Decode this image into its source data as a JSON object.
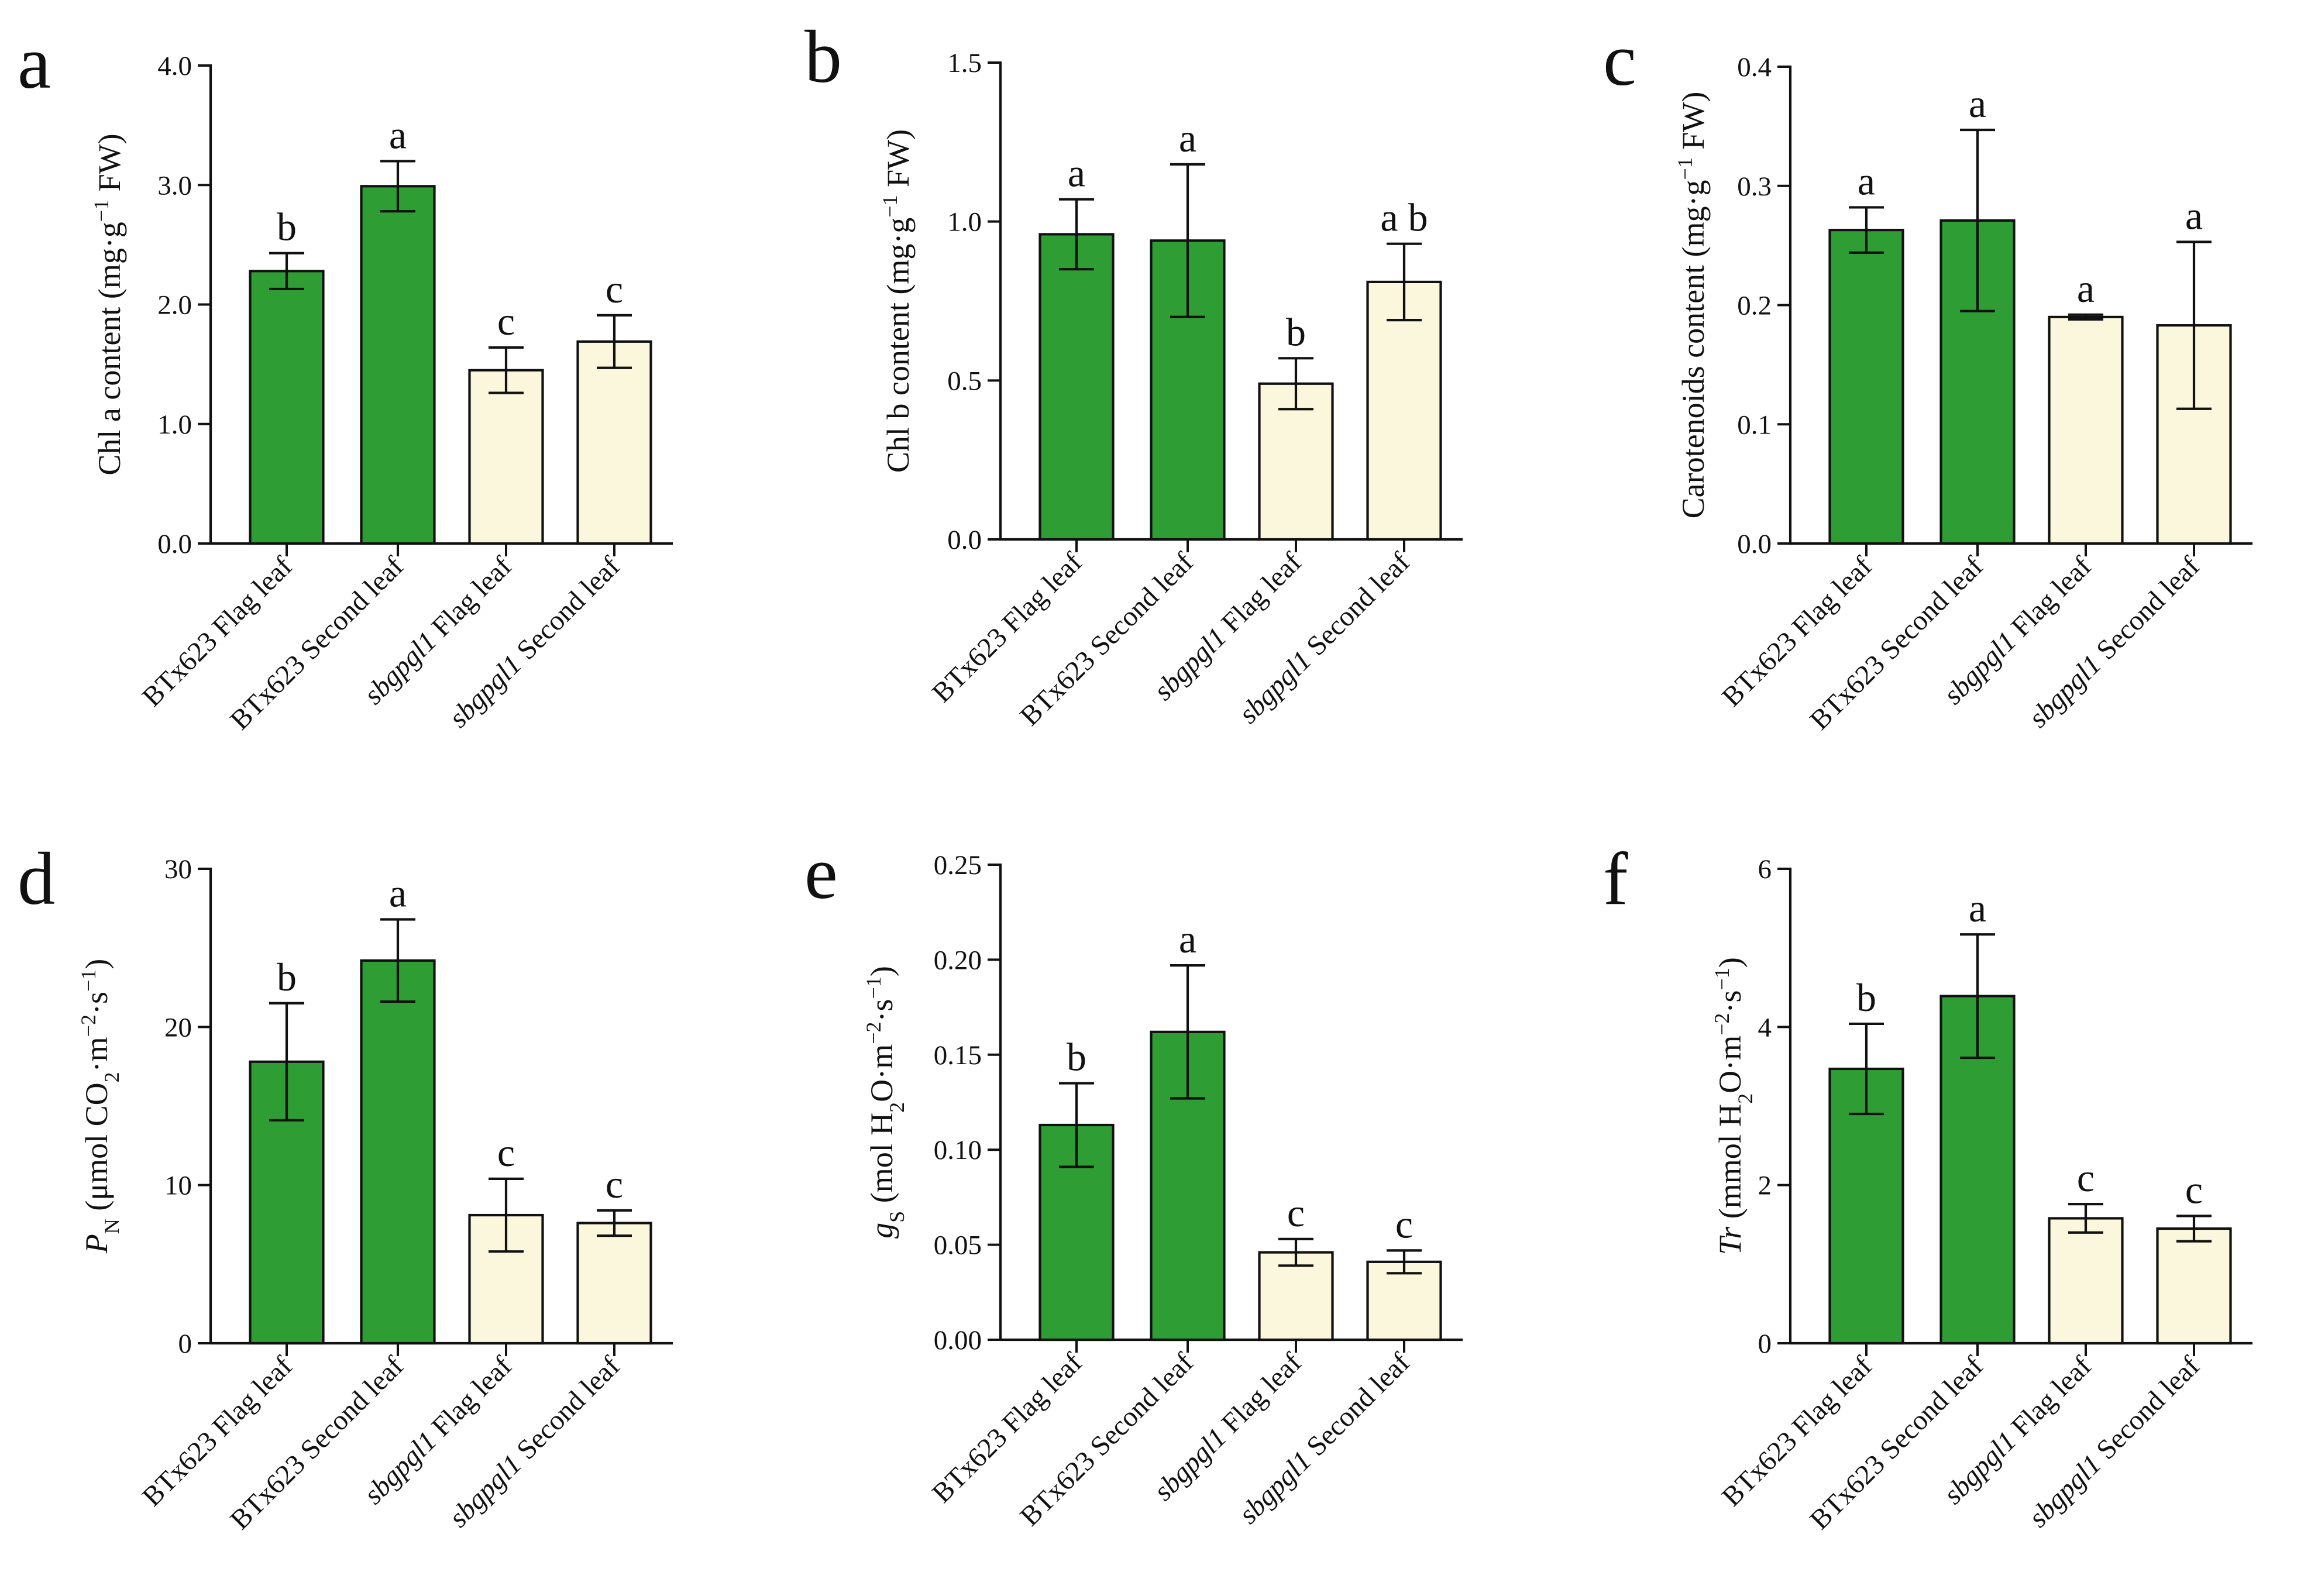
{
  "colors": {
    "wild_type": "#2e9e34",
    "mutant": "#fbf7dd"
  },
  "chart_data": [
    {
      "panel": "a",
      "type": "bar",
      "ylabel": [
        {
          "t": "Chl a content (mg·g"
        },
        {
          "t": "−1",
          "s": "sup"
        },
        {
          "t": " FW)"
        }
      ],
      "ylim": [
        0,
        4.0
      ],
      "ticks": [
        0.0,
        1.0,
        2.0,
        3.0,
        4.0
      ],
      "tick_format": "0.0",
      "categories": [
        [
          {
            "t": "BTx623 Flag leaf"
          }
        ],
        [
          {
            "t": "BTx623 Second leaf"
          }
        ],
        [
          {
            "t": "sbgpgl1",
            "i": true
          },
          {
            "t": " Flag leaf"
          }
        ],
        [
          {
            "t": "sbgpgl1",
            "i": true
          },
          {
            "t": " Second leaf"
          }
        ]
      ],
      "values": [
        2.28,
        2.99,
        1.45,
        1.69
      ],
      "errors": [
        0.15,
        0.21,
        0.19,
        0.22
      ],
      "groups": [
        "wild_type",
        "wild_type",
        "mutant",
        "mutant"
      ],
      "significance": [
        "b",
        "a",
        "c",
        "c"
      ]
    },
    {
      "panel": "b",
      "type": "bar",
      "ylabel": [
        {
          "t": "Chl b content (mg·g"
        },
        {
          "t": "−1",
          "s": "sup"
        },
        {
          "t": " FW)"
        }
      ],
      "ylim": [
        0,
        1.5
      ],
      "ticks": [
        0.0,
        0.5,
        1.0,
        1.5
      ],
      "tick_format": "0.0",
      "categories": [
        [
          {
            "t": "BTx623 Flag leaf"
          }
        ],
        [
          {
            "t": "BTx623 Second leaf"
          }
        ],
        [
          {
            "t": "sbgpgl1",
            "i": true
          },
          {
            "t": " Flag leaf"
          }
        ],
        [
          {
            "t": "sbgpgl1",
            "i": true
          },
          {
            "t": " Second leaf"
          }
        ]
      ],
      "values": [
        0.96,
        0.94,
        0.49,
        0.81
      ],
      "errors": [
        0.11,
        0.24,
        0.08,
        0.12
      ],
      "groups": [
        "wild_type",
        "wild_type",
        "mutant",
        "mutant"
      ],
      "significance": [
        "a",
        "a",
        "b",
        "a b"
      ]
    },
    {
      "panel": "c",
      "type": "bar",
      "ylabel": [
        {
          "t": "Carotenoids content (mg·g"
        },
        {
          "t": "−1",
          "s": "sup"
        },
        {
          "t": " FW)"
        }
      ],
      "ylim": [
        0,
        0.4
      ],
      "ticks": [
        0.0,
        0.1,
        0.2,
        0.3,
        0.4
      ],
      "tick_format": "0.0",
      "categories": [
        [
          {
            "t": "BTx623 Flag leaf"
          }
        ],
        [
          {
            "t": "BTx623 Second leaf"
          }
        ],
        [
          {
            "t": "sbgpgl1",
            "i": true
          },
          {
            "t": " Flag leaf"
          }
        ],
        [
          {
            "t": "sbgpgl1",
            "i": true
          },
          {
            "t": " Second leaf"
          }
        ]
      ],
      "values": [
        0.263,
        0.271,
        0.19,
        0.183
      ],
      "errors": [
        0.019,
        0.076,
        0.002,
        0.07
      ],
      "groups": [
        "wild_type",
        "wild_type",
        "mutant",
        "mutant"
      ],
      "significance": [
        "a",
        "a",
        "a",
        "a"
      ]
    },
    {
      "panel": "d",
      "type": "bar",
      "ylabel": [
        {
          "t": "P",
          "i": true
        },
        {
          "t": "N",
          "s": "sub"
        },
        {
          "t": " (μmol CO"
        },
        {
          "t": "2",
          "s": "sub"
        },
        {
          "t": "·m"
        },
        {
          "t": "−2",
          "s": "sup"
        },
        {
          "t": "·s"
        },
        {
          "t": "−1",
          "s": "sup"
        },
        {
          "t": ")"
        }
      ],
      "ylim": [
        0,
        30
      ],
      "ticks": [
        0,
        10,
        20,
        30
      ],
      "tick_format": "0",
      "categories": [
        [
          {
            "t": "BTx623 Flag leaf"
          }
        ],
        [
          {
            "t": "BTx623 Second leaf"
          }
        ],
        [
          {
            "t": "sbgpgl1",
            "i": true
          },
          {
            "t": " Flag leaf"
          }
        ],
        [
          {
            "t": "sbgpgl1",
            "i": true
          },
          {
            "t": " Second leaf"
          }
        ]
      ],
      "values": [
        17.8,
        24.2,
        8.1,
        7.6
      ],
      "errors": [
        3.7,
        2.6,
        2.3,
        0.8
      ],
      "groups": [
        "wild_type",
        "wild_type",
        "mutant",
        "mutant"
      ],
      "significance": [
        "b",
        "a",
        "c",
        "c"
      ]
    },
    {
      "panel": "e",
      "type": "bar",
      "ylabel": [
        {
          "t": "g",
          "i": true
        },
        {
          "t": "S",
          "s": "sub"
        },
        {
          "t": " (mol H"
        },
        {
          "t": "2",
          "s": "sub"
        },
        {
          "t": "O·m"
        },
        {
          "t": "−2",
          "s": "sup"
        },
        {
          "t": "·s"
        },
        {
          "t": "−1",
          "s": "sup"
        },
        {
          "t": ")"
        }
      ],
      "ylim": [
        0,
        0.25
      ],
      "ticks": [
        0.0,
        0.05,
        0.1,
        0.15,
        0.2,
        0.25
      ],
      "tick_format": "0.00",
      "categories": [
        [
          {
            "t": "BTx623 Flag leaf"
          }
        ],
        [
          {
            "t": "BTx623 Second leaf"
          }
        ],
        [
          {
            "t": "sbgpgl1",
            "i": true
          },
          {
            "t": " Flag leaf"
          }
        ],
        [
          {
            "t": "sbgpgl1",
            "i": true
          },
          {
            "t": " Second leaf"
          }
        ]
      ],
      "values": [
        0.113,
        0.162,
        0.046,
        0.041
      ],
      "errors": [
        0.022,
        0.035,
        0.007,
        0.006
      ],
      "groups": [
        "wild_type",
        "wild_type",
        "mutant",
        "mutant"
      ],
      "significance": [
        "b",
        "a",
        "c",
        "c"
      ]
    },
    {
      "panel": "f",
      "type": "bar",
      "ylabel": [
        {
          "t": "Tr",
          "i": true
        },
        {
          "t": " (mmol H"
        },
        {
          "t": "2",
          "s": "sub"
        },
        {
          "t": "O·m"
        },
        {
          "t": "−2",
          "s": "sup"
        },
        {
          "t": "·s"
        },
        {
          "t": "−1",
          "s": "sup"
        },
        {
          "t": ")"
        }
      ],
      "ylim": [
        0,
        6
      ],
      "ticks": [
        0,
        2,
        4,
        6
      ],
      "tick_format": "0",
      "categories": [
        [
          {
            "t": "BTx623 Flag leaf"
          }
        ],
        [
          {
            "t": "BTx623 Second leaf"
          }
        ],
        [
          {
            "t": "sbgpgl1",
            "i": true
          },
          {
            "t": " Flag leaf"
          }
        ],
        [
          {
            "t": "sbgpgl1",
            "i": true
          },
          {
            "t": " Second leaf"
          }
        ]
      ],
      "values": [
        3.47,
        4.39,
        1.58,
        1.45
      ],
      "errors": [
        0.57,
        0.78,
        0.18,
        0.16
      ],
      "groups": [
        "wild_type",
        "wild_type",
        "mutant",
        "mutant"
      ],
      "significance": [
        "b",
        "a",
        "c",
        "c"
      ]
    }
  ]
}
